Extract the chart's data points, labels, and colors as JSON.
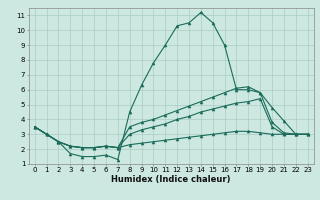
{
  "xlabel": "Humidex (Indice chaleur)",
  "background_color": "#cce8e0",
  "grid_color": "#aaccc4",
  "line_color": "#1a6b5a",
  "xlim": [
    -0.5,
    23.5
  ],
  "ylim": [
    1,
    11.5
  ],
  "xticks": [
    0,
    1,
    2,
    3,
    4,
    5,
    6,
    7,
    8,
    9,
    10,
    11,
    12,
    13,
    14,
    15,
    16,
    17,
    18,
    19,
    20,
    21,
    22,
    23
  ],
  "yticks": [
    1,
    2,
    3,
    4,
    5,
    6,
    7,
    8,
    9,
    10,
    11
  ],
  "series": [
    [
      3.5,
      3.0,
      2.5,
      1.7,
      1.5,
      1.5,
      1.6,
      1.3,
      4.5,
      6.3,
      7.8,
      9.0,
      10.3,
      10.5,
      11.2,
      10.5,
      9.0,
      6.0,
      6.0,
      5.8,
      4.8,
      3.9,
      3.0,
      3.0
    ],
    [
      3.5,
      3.0,
      2.5,
      2.2,
      2.1,
      2.1,
      2.2,
      2.1,
      3.5,
      3.8,
      4.0,
      4.3,
      4.6,
      4.9,
      5.2,
      5.5,
      5.8,
      6.1,
      6.2,
      5.8,
      3.8,
      3.1,
      3.0,
      3.0
    ],
    [
      3.5,
      3.0,
      2.5,
      2.2,
      2.1,
      2.1,
      2.2,
      2.1,
      3.0,
      3.3,
      3.5,
      3.7,
      4.0,
      4.2,
      4.5,
      4.7,
      4.9,
      5.1,
      5.2,
      5.4,
      3.5,
      3.0,
      3.0,
      3.0
    ],
    [
      3.5,
      3.0,
      2.5,
      2.2,
      2.1,
      2.1,
      2.2,
      2.1,
      2.3,
      2.4,
      2.5,
      2.6,
      2.7,
      2.8,
      2.9,
      3.0,
      3.1,
      3.2,
      3.2,
      3.1,
      3.0,
      3.0,
      3.0,
      3.0
    ]
  ],
  "xlabel_fontsize": 6.0,
  "tick_fontsize": 5.0
}
